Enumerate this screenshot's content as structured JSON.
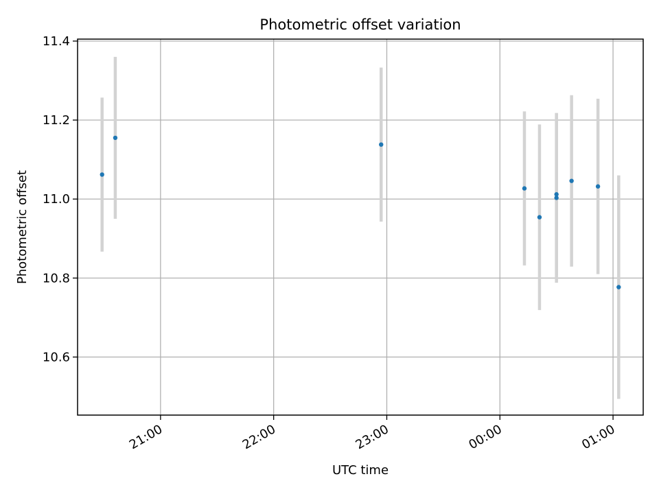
{
  "chart_data": {
    "type": "scatter",
    "title": "Photometric offset variation",
    "xlabel": "UTC time",
    "ylabel": "Photometric offset",
    "x_tick_labels": [
      "21:00",
      "22:00",
      "23:00",
      "00:00",
      "01:00"
    ],
    "x_tick_times": [
      "21:00",
      "22:00",
      "23:00",
      "00:00",
      "01:00"
    ],
    "y_ticks": [
      10.6,
      10.8,
      11.0,
      11.2,
      11.4
    ],
    "y_tick_labels": [
      "10.6",
      "10.8",
      "11.0",
      "11.2",
      "11.4"
    ],
    "xlim": [
      "20:16",
      "01:16"
    ],
    "ylim": [
      10.453,
      11.405
    ],
    "grid": true,
    "colors": {
      "points": "#1f77b4",
      "errorbars": "#d3d3d3",
      "grid": "#b0b0b0"
    },
    "points": [
      {
        "time": "20:29",
        "y": 11.062,
        "yerr": 0.195
      },
      {
        "time": "20:36",
        "y": 11.155,
        "yerr": 0.205
      },
      {
        "time": "22:57",
        "y": 11.138,
        "yerr": 0.195
      },
      {
        "time": "00:13",
        "y": 11.027,
        "yerr": 0.195
      },
      {
        "time": "00:21",
        "y": 10.954,
        "yerr": 0.235
      },
      {
        "time": "00:30",
        "y": 11.003,
        "yerr": 0.215
      },
      {
        "time": "00:30",
        "y": 11.012,
        "yerr": 0.205
      },
      {
        "time": "00:38",
        "y": 11.046,
        "yerr": 0.217
      },
      {
        "time": "00:52",
        "y": 11.032,
        "yerr": 0.222
      },
      {
        "time": "01:03",
        "y": 10.777,
        "yerr": 0.283
      }
    ]
  }
}
